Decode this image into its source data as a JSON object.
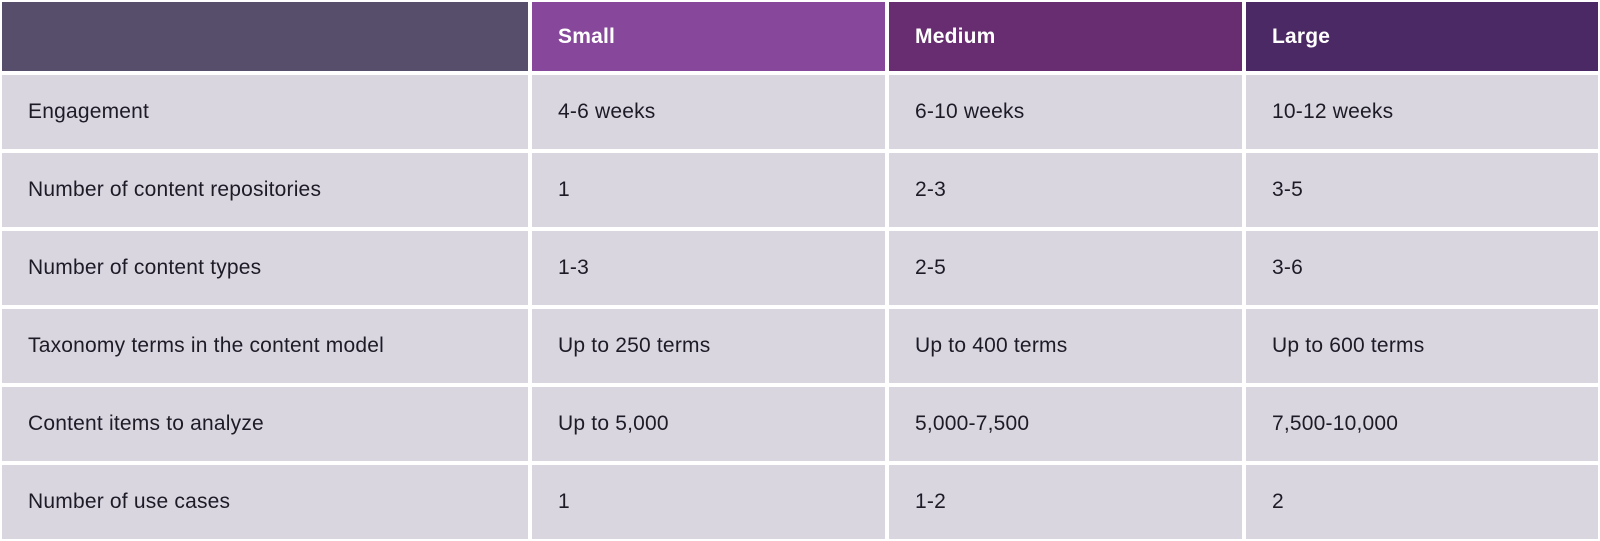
{
  "table": {
    "corner_label": "",
    "columns": {
      "small": "Small",
      "medium": "Medium",
      "large": "Large"
    },
    "rows": [
      {
        "label": "Engagement",
        "small": "4-6 weeks",
        "medium": "6-10 weeks",
        "large": "10-12 weeks"
      },
      {
        "label": "Number of content repositories",
        "small": "1",
        "medium": "2-3",
        "large": "3-5"
      },
      {
        "label": "Number of content types",
        "small": "1-3",
        "medium": "2-5",
        "large": "3-6"
      },
      {
        "label": "Taxonomy terms in the content model",
        "small": "Up to 250 terms",
        "medium": "Up to 400 terms",
        "large": "Up to 600 terms"
      },
      {
        "label": "Content items to analyze",
        "small": "Up to 5,000",
        "medium": "5,000-7,500",
        "large": "7,500-10,000"
      },
      {
        "label": "Number of use cases",
        "small": "1",
        "medium": "1-2",
        "large": "2"
      }
    ]
  },
  "colors": {
    "corner_bg": "#564e6b",
    "small_bg": "#87489b",
    "medium_bg": "#682d70",
    "large_bg": "#4b2964",
    "row_bg": "#d9d6e0",
    "gap_color": "#ffffff",
    "text_color": "#1d1b26",
    "header_text_color": "#ffffff"
  }
}
